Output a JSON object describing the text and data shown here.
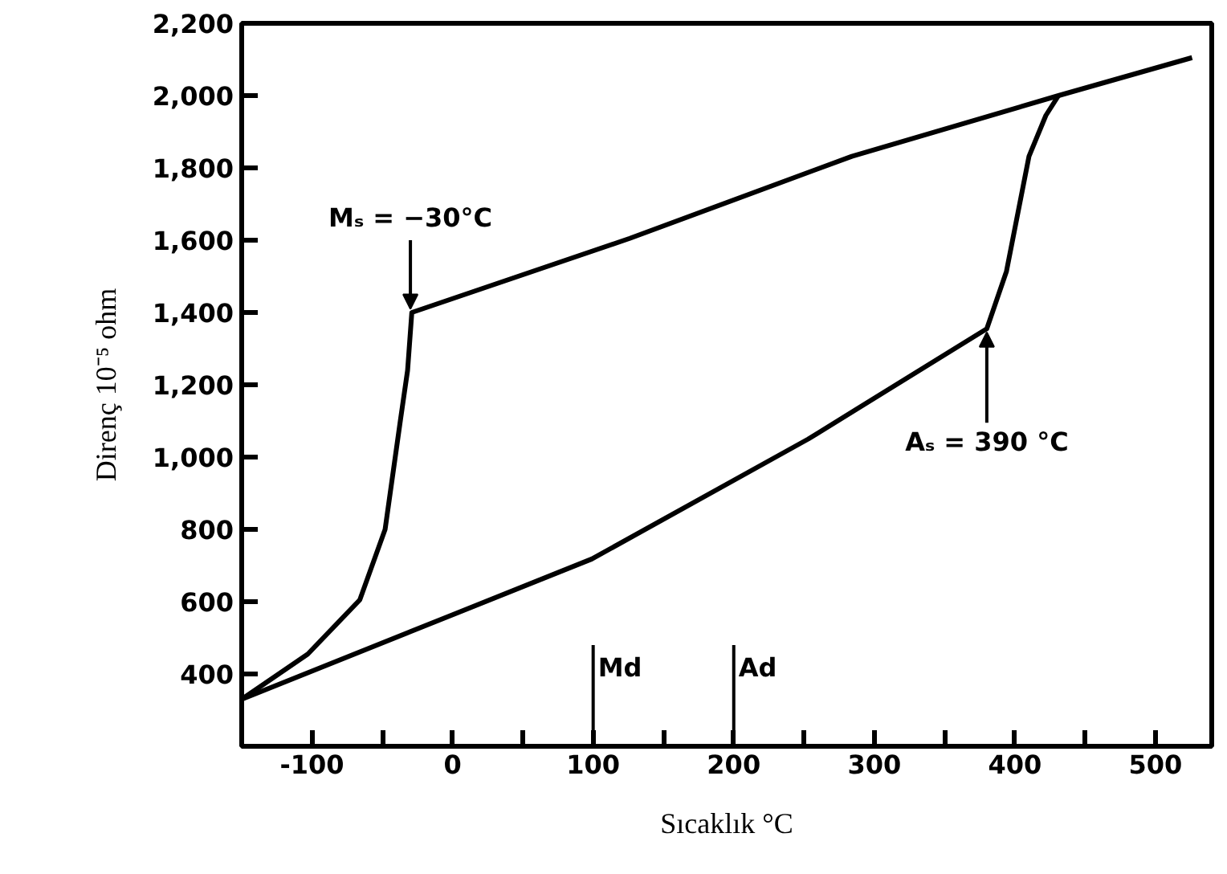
{
  "chart_data": {
    "type": "line",
    "xlabel": "Sıcaklık °C",
    "ylabel": "Direnç 10⁻⁵ ohm",
    "series": [
      {
        "color": "#000000",
        "x": [
          526,
          431,
          284,
          126,
          -29,
          -32,
          -37,
          -48,
          -66,
          -103,
          -150
        ],
        "values": [
          2105,
          2000,
          1832,
          1605,
          1400,
          1240,
          1105,
          800,
          605,
          455,
          330
        ]
      },
      {
        "color": "#000000",
        "x": [
          -150,
          99,
          253,
          380,
          394,
          410,
          422,
          431
        ],
        "values": [
          330,
          718,
          1050,
          1355,
          1514,
          1832,
          1945,
          2000
        ]
      }
    ],
    "xlim": [
      -150,
      540
    ],
    "ylim": [
      200,
      2200
    ],
    "xticks": [
      {
        "value": -100,
        "label": "-100"
      },
      {
        "value": -50,
        "label": null
      },
      0,
      {
        "value": 50,
        "label": null
      },
      100,
      {
        "value": 150,
        "label": null
      },
      200,
      {
        "value": 250,
        "label": null
      },
      300,
      {
        "value": 350,
        "label": null
      },
      400,
      {
        "value": 450,
        "label": null
      },
      500
    ],
    "yticks": [
      400,
      600,
      800,
      {
        "value": 1000,
        "label": "1,000"
      },
      {
        "value": 1200,
        "label": "1,200"
      },
      {
        "value": 1400,
        "label": "1,400"
      },
      {
        "value": 1600,
        "label": "1,600"
      },
      {
        "value": 1800,
        "label": "1,800"
      },
      {
        "value": 2000,
        "label": "2,000"
      },
      {
        "value": 2200,
        "label": "2,200"
      }
    ],
    "annotations": [
      {
        "text": "Mₛ = −30°C",
        "x": -30,
        "y": 1400
      },
      {
        "text": "Aₛ = 390 °C",
        "x": 380,
        "y": 1355
      }
    ],
    "ref_lines": [
      {
        "axis": "x",
        "value": 100,
        "label": "Md"
      },
      {
        "axis": "x",
        "value": 200,
        "label": "Ad"
      }
    ],
    "grid": false,
    "marker": "none",
    "line_style": "solid"
  }
}
